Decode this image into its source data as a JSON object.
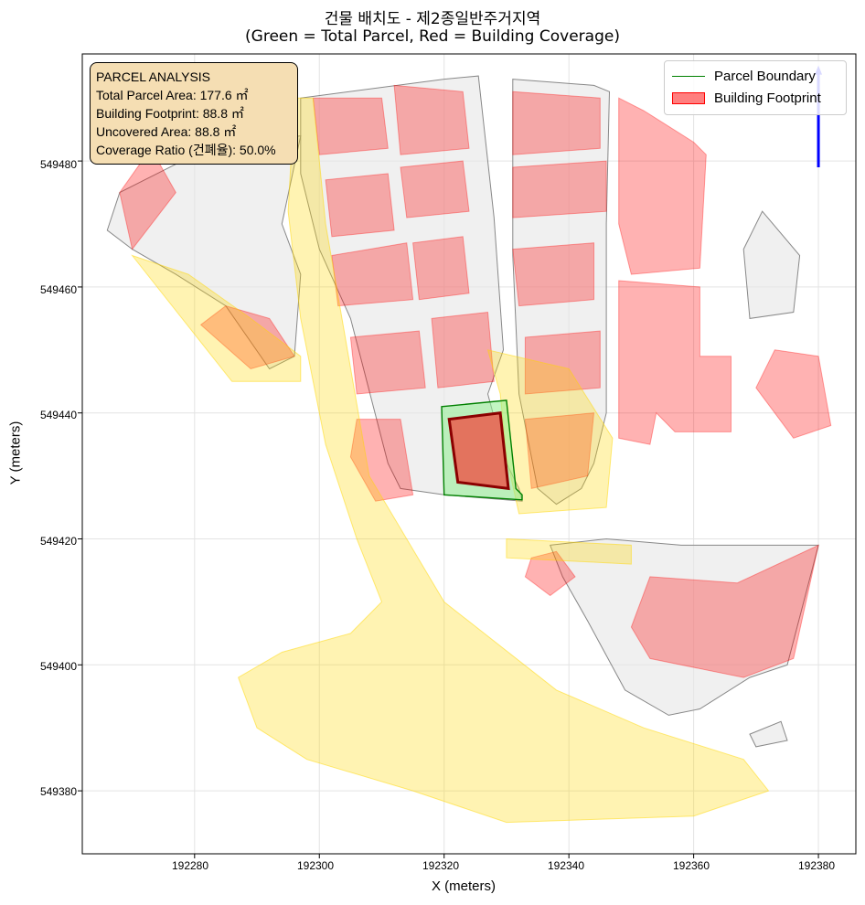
{
  "title_line1": "건물 배치도 - 제2종일반주거지역",
  "title_line2": "(Green = Total Parcel, Red = Building Coverage)",
  "annotation": {
    "heading": "PARCEL ANALYSIS",
    "total_area": "Total Parcel Area: 177.6 ㎡",
    "footprint": "Building Footprint: 88.8 ㎡",
    "uncovered": "Uncovered Area: 88.8 ㎡",
    "coverage": "Coverage Ratio (건폐율): 50.0%"
  },
  "legend": {
    "parcel_boundary": "Parcel Boundary",
    "building_footprint": "Building Footprint"
  },
  "x_axis": {
    "label": "X (meters)",
    "ticks": [
      "192280",
      "192300",
      "192320",
      "192340",
      "192360",
      "192380"
    ]
  },
  "y_axis": {
    "label": "Y (meters)",
    "ticks": [
      "549380",
      "549400",
      "549420",
      "549440",
      "549460",
      "549480"
    ]
  },
  "colors": {
    "parcel_edge": "#008000",
    "parcel_fill": "#90ee90",
    "building_fill": "#ff0000",
    "road_fill": "#ffd700",
    "context_fill": "#e6e6e6",
    "annotation_bg": "#f5deb3",
    "north_arrow": "#0000ff"
  },
  "chart_data": {
    "type": "map",
    "xlim": [
      192262,
      192386
    ],
    "ylim": [
      549370,
      549497
    ],
    "grid": true,
    "legend_position": "top-right",
    "annotation_position": "top-left",
    "target_parcel": [
      [
        192319.6,
        549441
      ],
      [
        192330,
        549442
      ],
      [
        192331.5,
        549428
      ],
      [
        192332.5,
        549427
      ],
      [
        192332.5,
        549426.2
      ],
      [
        192320,
        549427
      ]
    ],
    "target_building": [
      [
        192320.8,
        549439
      ],
      [
        192329,
        549440
      ],
      [
        192330.3,
        549428
      ],
      [
        192322.2,
        549429
      ]
    ],
    "north_arrow": {
      "x": 192380,
      "y_from": 549479,
      "y_to": 549494
    },
    "context_parcels": [
      [
        [
          192297,
          549490
        ],
        [
          192320,
          549493
        ],
        [
          192325.5,
          549493.5
        ],
        [
          192328,
          549471
        ],
        [
          192329.5,
          549450
        ],
        [
          192327,
          549443
        ],
        [
          192330,
          549432
        ],
        [
          192332,
          549428
        ],
        [
          192332.5,
          549426
        ],
        [
          192320,
          549427
        ],
        [
          192313,
          549428
        ],
        [
          192311,
          549432
        ],
        [
          192305,
          549455
        ],
        [
          192300,
          549466
        ],
        [
          192297,
          549478
        ]
      ],
      [
        [
          192331,
          549493
        ],
        [
          192344,
          549492
        ],
        [
          192346.5,
          549491
        ],
        [
          192346,
          549470
        ],
        [
          192346,
          549440
        ],
        [
          192344,
          549432
        ],
        [
          192342,
          549428
        ],
        [
          192338,
          549425.5
        ],
        [
          192335,
          549428
        ],
        [
          192332,
          549443
        ],
        [
          192331,
          549465
        ]
      ],
      [
        [
          192268,
          549475
        ],
        [
          192282,
          549482
        ],
        [
          192297,
          549484
        ],
        [
          192294,
          549470
        ],
        [
          192297,
          549462
        ],
        [
          192296,
          549449
        ],
        [
          192292,
          549447
        ],
        [
          192285,
          549457
        ],
        [
          192277,
          549462
        ],
        [
          192270,
          549466
        ],
        [
          192266,
          549469
        ]
      ],
      [
        [
          192371,
          549472
        ],
        [
          192377,
          549465
        ],
        [
          192376,
          549456
        ],
        [
          192369,
          549455
        ],
        [
          192368,
          549466
        ]
      ],
      [
        [
          192337,
          549419
        ],
        [
          192346,
          549420
        ],
        [
          192358,
          549419
        ],
        [
          192367,
          549419
        ],
        [
          192380,
          549419
        ],
        [
          192375,
          549400
        ],
        [
          192369,
          549398
        ],
        [
          192361,
          549393
        ],
        [
          192356,
          549392
        ],
        [
          192349,
          549396
        ],
        [
          192343,
          549407
        ],
        [
          192339,
          549414
        ]
      ],
      [
        [
          192369,
          549389
        ],
        [
          192374,
          549391
        ],
        [
          192375,
          549388
        ],
        [
          192370,
          549387
        ]
      ]
    ],
    "context_buildings": [
      [
        [
          192299,
          549490
        ],
        [
          192310,
          549490
        ],
        [
          192311,
          549482
        ],
        [
          192300,
          549481
        ]
      ],
      [
        [
          192312,
          549492
        ],
        [
          192323,
          549491
        ],
        [
          192324,
          549482
        ],
        [
          192313,
          549481
        ]
      ],
      [
        [
          192331,
          549491
        ],
        [
          192345,
          549490
        ],
        [
          192345,
          549482
        ],
        [
          192331,
          549481
        ]
      ],
      [
        [
          192301,
          549477
        ],
        [
          192311,
          549478
        ],
        [
          192312,
          549469
        ],
        [
          192302,
          549468
        ]
      ],
      [
        [
          192313,
          549479
        ],
        [
          192323,
          549480
        ],
        [
          192324,
          549472
        ],
        [
          192314,
          549471
        ]
      ],
      [
        [
          192331,
          549479
        ],
        [
          192346,
          549480
        ],
        [
          192346,
          549472
        ],
        [
          192331,
          549471
        ]
      ],
      [
        [
          192348,
          549490
        ],
        [
          192352,
          549488
        ],
        [
          192360,
          549483
        ],
        [
          192362,
          549481
        ],
        [
          192361,
          549463
        ],
        [
          192350,
          549462
        ],
        [
          192348,
          549470
        ]
      ],
      [
        [
          192302,
          549465
        ],
        [
          192314,
          549467
        ],
        [
          192315,
          549458
        ],
        [
          192303,
          549457
        ]
      ],
      [
        [
          192315,
          549467
        ],
        [
          192323,
          549468
        ],
        [
          192324,
          549459
        ],
        [
          192316,
          549458
        ]
      ],
      [
        [
          192331,
          549466
        ],
        [
          192344,
          549467
        ],
        [
          192344,
          549458
        ],
        [
          192332,
          549457
        ]
      ],
      [
        [
          192348,
          549461
        ],
        [
          192361,
          549460
        ],
        [
          192361,
          549449
        ],
        [
          192366,
          549449
        ],
        [
          192366,
          549437
        ],
        [
          192357,
          549437
        ],
        [
          192354,
          549440
        ],
        [
          192353,
          549435
        ],
        [
          192348,
          549436
        ]
      ],
      [
        [
          192305,
          549452
        ],
        [
          192316,
          549453
        ],
        [
          192317,
          549444
        ],
        [
          192306,
          549443
        ]
      ],
      [
        [
          192318,
          549455
        ],
        [
          192327,
          549456
        ],
        [
          192328,
          549445
        ],
        [
          192319,
          549444
        ]
      ],
      [
        [
          192333,
          549452
        ],
        [
          192345,
          549453
        ],
        [
          192345,
          549444
        ],
        [
          192333,
          549443
        ]
      ],
      [
        [
          192268,
          549475
        ],
        [
          192273,
          549482
        ],
        [
          192277,
          549475
        ],
        [
          192270,
          549466
        ]
      ],
      [
        [
          192285,
          549457
        ],
        [
          192292,
          549455
        ],
        [
          192296,
          549449
        ],
        [
          192289,
          549447
        ],
        [
          192281,
          549454
        ]
      ],
      [
        [
          192306,
          549439
        ],
        [
          192313,
          549439
        ],
        [
          192315,
          549427
        ],
        [
          192309,
          549426
        ],
        [
          192305,
          549433
        ]
      ],
      [
        [
          192333,
          549439
        ],
        [
          192344,
          549440
        ],
        [
          192343,
          549430
        ],
        [
          192334,
          549428
        ]
      ],
      [
        [
          192373,
          549450
        ],
        [
          192380,
          549449
        ],
        [
          192382,
          549438
        ],
        [
          192376,
          549436
        ],
        [
          192370,
          549444
        ]
      ],
      [
        [
          192353,
          549414
        ],
        [
          192367,
          549413
        ],
        [
          192380,
          549419
        ],
        [
          192376,
          549401
        ],
        [
          192368,
          549398
        ],
        [
          192353,
          549401
        ],
        [
          192350,
          549406
        ]
      ],
      [
        [
          192334,
          549417
        ],
        [
          192338,
          549418
        ],
        [
          192341,
          549414
        ],
        [
          192337,
          549411
        ],
        [
          192333,
          549414
        ]
      ]
    ],
    "roads": [
      [
        [
          192296,
          549490
        ],
        [
          192299,
          549490
        ],
        [
          192301,
          549470
        ],
        [
          192308,
          549430
        ],
        [
          192320,
          549410
        ],
        [
          192338,
          549396
        ],
        [
          192352,
          549390
        ],
        [
          192368,
          549385
        ],
        [
          192372,
          549380
        ],
        [
          192360,
          549376
        ],
        [
          192330,
          549375
        ],
        [
          192315,
          549380
        ],
        [
          192298,
          549385
        ],
        [
          192290,
          549390
        ],
        [
          192287,
          549398
        ],
        [
          192294,
          549402
        ],
        [
          192305,
          549405
        ],
        [
          192310,
          549410
        ],
        [
          192306,
          549420
        ],
        [
          192301,
          549435
        ],
        [
          192297,
          549455
        ],
        [
          192295,
          549472
        ]
      ],
      [
        [
          192270,
          549465
        ],
        [
          192286,
          549445
        ],
        [
          192297,
          549445
        ],
        [
          192297,
          549449
        ],
        [
          192289,
          549455
        ],
        [
          192279,
          549462
        ]
      ],
      [
        [
          192327,
          549450
        ],
        [
          192340,
          549447
        ],
        [
          192347,
          549436
        ],
        [
          192346,
          549425
        ],
        [
          192332,
          549424
        ],
        [
          192330,
          549433
        ],
        [
          192329,
          549443
        ]
      ],
      [
        [
          192330,
          549420
        ],
        [
          192350,
          549419
        ],
        [
          192350,
          549416
        ],
        [
          192330,
          549417
        ]
      ]
    ]
  }
}
